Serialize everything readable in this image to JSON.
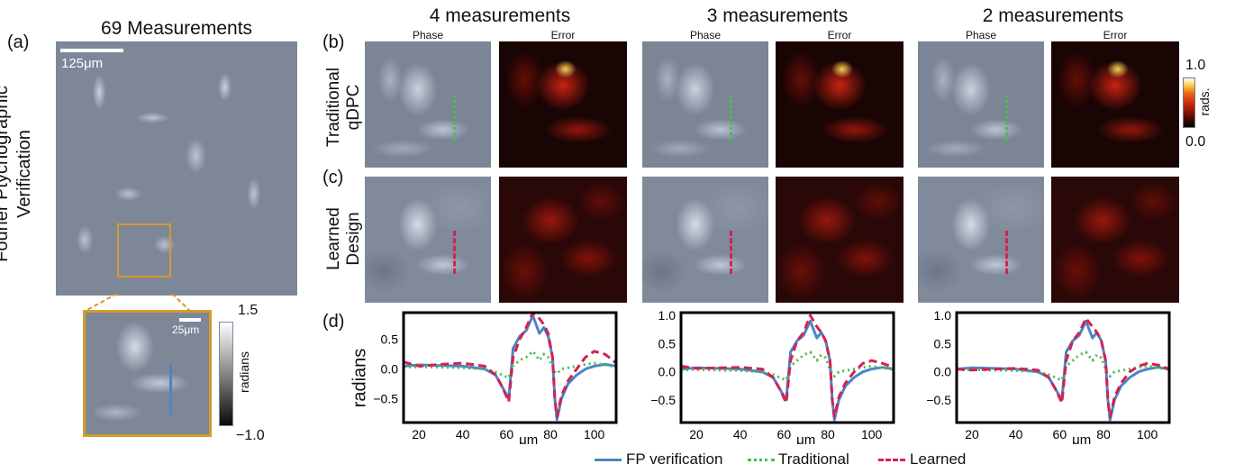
{
  "panel_labels": [
    "(a)",
    "(b)",
    "(c)",
    "(d)"
  ],
  "main_title": "69 Measurements",
  "left_row_label": [
    "Fourier Ptychographic",
    "Verification"
  ],
  "scalebar_main": "125μm",
  "scalebar_inset": "25μm",
  "inset_colorbar": {
    "max": "1.5",
    "min": "−1.0",
    "label": "radians"
  },
  "error_colorbar": {
    "max": "1.0",
    "min": "0.0",
    "label": "rads."
  },
  "columns": [
    {
      "title": "4 measurements",
      "phase": "Phase",
      "error": "Error"
    },
    {
      "title": "3 measurements",
      "phase": "Phase",
      "error": "Error"
    },
    {
      "title": "2 measurements",
      "phase": "Phase",
      "error": "Error"
    }
  ],
  "row_labels": {
    "b": [
      "Traditional",
      "qDPC"
    ],
    "c": [
      "Learned",
      "Design"
    ]
  },
  "plot_ylabel": "radians",
  "plot_xlabel": "μm",
  "colors": {
    "fp": "#4a86c8",
    "traditional": "#4dbb4d",
    "learned": "#d6214f"
  },
  "chart_data": [
    {
      "type": "line",
      "xlim": [
        13,
        110
      ],
      "ylim": [
        -0.9,
        0.95
      ],
      "xticks": [
        20,
        40,
        60,
        80,
        100
      ],
      "yticks": [
        0.5,
        0.0,
        -0.5
      ],
      "ylabel": "radians",
      "xlabel": "μm",
      "series": [
        {
          "name": "FP verification",
          "x": [
            13,
            20,
            30,
            40,
            50,
            55,
            58,
            61,
            63,
            66,
            69,
            72,
            75,
            77,
            79,
            81,
            82,
            83,
            85,
            88,
            92,
            96,
            100,
            105,
            110
          ],
          "y": [
            0.05,
            0.07,
            0.06,
            0.05,
            0.0,
            -0.1,
            -0.3,
            -0.5,
            0.35,
            0.55,
            0.65,
            0.9,
            0.6,
            0.7,
            0.55,
            0.2,
            -0.5,
            -0.85,
            -0.5,
            -0.25,
            -0.1,
            0.0,
            0.05,
            0.08,
            0.05
          ]
        },
        {
          "name": "Traditional",
          "x": [
            13,
            20,
            30,
            40,
            50,
            55,
            58,
            61,
            63,
            66,
            69,
            72,
            75,
            77,
            79,
            81,
            82,
            83,
            85,
            88,
            92,
            96,
            100,
            105,
            110
          ],
          "y": [
            0.03,
            0.04,
            0.03,
            0.02,
            0.0,
            -0.05,
            -0.1,
            -0.15,
            0.05,
            0.15,
            0.2,
            0.3,
            0.15,
            0.25,
            0.2,
            0.05,
            -0.05,
            -0.08,
            0.0,
            0.02,
            0.05,
            0.08,
            0.1,
            0.07,
            0.04
          ]
        },
        {
          "name": "Learned",
          "x": [
            13,
            20,
            30,
            40,
            50,
            55,
            58,
            61,
            63,
            66,
            69,
            72,
            75,
            77,
            79,
            81,
            82,
            83,
            85,
            88,
            92,
            96,
            100,
            105,
            110
          ],
          "y": [
            0.12,
            0.05,
            0.08,
            0.1,
            0.05,
            -0.1,
            -0.3,
            -0.55,
            0.2,
            0.5,
            0.7,
            0.95,
            0.85,
            0.75,
            0.6,
            0.2,
            -0.5,
            -0.8,
            -0.45,
            -0.2,
            0.0,
            0.2,
            0.3,
            0.25,
            0.1
          ]
        }
      ]
    },
    {
      "type": "line",
      "xlim": [
        13,
        110
      ],
      "ylim": [
        -0.9,
        1.05
      ],
      "xticks": [
        20,
        40,
        60,
        80,
        100
      ],
      "yticks": [
        1.0,
        0.5,
        0.0,
        -0.5
      ],
      "series": [
        {
          "name": "FP verification",
          "x": [
            13,
            20,
            30,
            40,
            50,
            55,
            58,
            61,
            63,
            66,
            69,
            72,
            75,
            77,
            79,
            81,
            82,
            83,
            85,
            88,
            92,
            96,
            100,
            105,
            110
          ],
          "y": [
            0.05,
            0.07,
            0.06,
            0.05,
            0.0,
            -0.1,
            -0.3,
            -0.5,
            0.35,
            0.55,
            0.65,
            0.9,
            0.6,
            0.7,
            0.55,
            0.2,
            -0.5,
            -0.85,
            -0.5,
            -0.25,
            -0.1,
            0.0,
            0.05,
            0.08,
            0.05
          ]
        },
        {
          "name": "Traditional",
          "x": [
            13,
            20,
            30,
            40,
            50,
            55,
            58,
            61,
            63,
            66,
            69,
            72,
            75,
            77,
            79,
            81,
            82,
            83,
            85,
            88,
            92,
            96,
            100,
            105,
            110
          ],
          "y": [
            0.03,
            0.04,
            0.03,
            0.02,
            0.0,
            -0.05,
            -0.1,
            -0.15,
            0.1,
            0.2,
            0.3,
            0.35,
            0.2,
            0.3,
            0.25,
            0.05,
            -0.05,
            -0.08,
            0.0,
            0.02,
            0.05,
            0.08,
            0.1,
            0.07,
            0.04
          ]
        },
        {
          "name": "Learned",
          "x": [
            13,
            20,
            30,
            40,
            50,
            55,
            58,
            61,
            63,
            66,
            69,
            72,
            75,
            77,
            79,
            81,
            82,
            83,
            85,
            88,
            92,
            96,
            100,
            105,
            110
          ],
          "y": [
            0.1,
            0.06,
            0.07,
            0.08,
            0.05,
            -0.1,
            -0.3,
            -0.55,
            0.2,
            0.55,
            0.7,
            1.0,
            0.8,
            0.7,
            0.55,
            0.2,
            -0.5,
            -0.8,
            -0.45,
            -0.2,
            0.0,
            0.15,
            0.2,
            0.15,
            0.08
          ]
        }
      ]
    },
    {
      "type": "line",
      "xlim": [
        13,
        110
      ],
      "ylim": [
        -0.9,
        1.05
      ],
      "xticks": [
        20,
        40,
        60,
        80,
        100
      ],
      "yticks": [
        1.0,
        0.5,
        0.0,
        -0.5
      ],
      "series": [
        {
          "name": "FP verification",
          "x": [
            13,
            20,
            30,
            40,
            50,
            55,
            58,
            61,
            63,
            66,
            69,
            72,
            75,
            77,
            79,
            81,
            82,
            83,
            85,
            88,
            92,
            96,
            100,
            105,
            110
          ],
          "y": [
            0.05,
            0.07,
            0.06,
            0.05,
            0.0,
            -0.1,
            -0.3,
            -0.5,
            0.35,
            0.55,
            0.65,
            0.9,
            0.6,
            0.7,
            0.55,
            0.2,
            -0.5,
            -0.85,
            -0.5,
            -0.25,
            -0.1,
            0.0,
            0.05,
            0.08,
            0.05
          ]
        },
        {
          "name": "Traditional",
          "x": [
            13,
            20,
            30,
            40,
            50,
            55,
            58,
            61,
            63,
            66,
            69,
            72,
            75,
            77,
            79,
            81,
            82,
            83,
            85,
            88,
            92,
            96,
            100,
            105,
            110
          ],
          "y": [
            0.03,
            0.04,
            0.03,
            0.02,
            0.0,
            -0.05,
            -0.1,
            -0.15,
            0.1,
            0.2,
            0.3,
            0.35,
            0.2,
            0.3,
            0.25,
            0.05,
            -0.05,
            -0.08,
            0.0,
            0.02,
            0.05,
            0.08,
            0.1,
            0.07,
            0.04
          ]
        },
        {
          "name": "Learned",
          "x": [
            13,
            20,
            30,
            40,
            50,
            55,
            58,
            61,
            63,
            66,
            69,
            72,
            75,
            77,
            79,
            81,
            82,
            83,
            85,
            88,
            92,
            96,
            100,
            105,
            110
          ],
          "y": [
            0.05,
            0.03,
            0.05,
            0.06,
            0.03,
            -0.1,
            -0.3,
            -0.55,
            0.2,
            0.55,
            0.7,
            0.95,
            0.8,
            0.7,
            0.55,
            0.2,
            -0.5,
            -0.8,
            -0.45,
            -0.2,
            0.0,
            0.1,
            0.15,
            0.12,
            0.05
          ]
        }
      ]
    }
  ],
  "legend": [
    "FP verification",
    "Traditional",
    "Learned"
  ]
}
